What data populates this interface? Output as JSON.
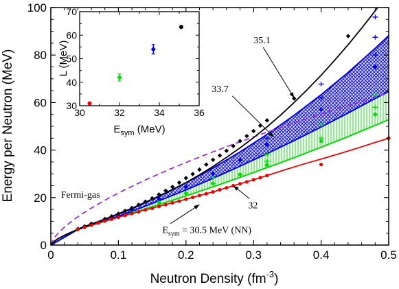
{
  "chart_data": [
    {
      "type": "line",
      "title": "",
      "xlabel": "Neutron Density (fm",
      "xlabel_sup": "-3",
      "xlabel_close": ")",
      "ylabel": "Energy per Neutron (MeV)",
      "xlim": [
        0,
        0.5
      ],
      "ylim": [
        0,
        100
      ],
      "xticks": [
        0,
        0.1,
        0.2,
        0.3,
        0.4,
        0.5
      ],
      "xtick_labels": [
        "0",
        "0.1",
        "0.2",
        "0.3",
        "0.4",
        "0.5"
      ],
      "yticks": [
        0,
        20,
        40,
        60,
        80,
        100
      ],
      "ytick_labels": [
        "0",
        "20",
        "40",
        "60",
        "80",
        "100"
      ],
      "grid": false,
      "legend": "none",
      "colors": {
        "black": "#000000",
        "blue": "#0000ee",
        "green": "#00dd00",
        "red": "#ee0000",
        "fermi": "#9a2fd6"
      },
      "series": [
        {
          "key": "esym35",
          "color": "#000000",
          "x": [
            0.04,
            0.05,
            0.06,
            0.08,
            0.09,
            0.1,
            0.11,
            0.12,
            0.13,
            0.14,
            0.15,
            0.16,
            0.17,
            0.18,
            0.19,
            0.2,
            0.21,
            0.22,
            0.23,
            0.24,
            0.25,
            0.26,
            0.27,
            0.28,
            0.29,
            0.3,
            0.31,
            0.32,
            0.36,
            0.44
          ],
          "y": [
            6.8,
            7.9,
            9.0,
            11.0,
            12.1,
            13.2,
            14.4,
            15.6,
            17.0,
            18.3,
            19.7,
            21.3,
            22.9,
            24.5,
            26.3,
            28.2,
            29.9,
            31.8,
            33.9,
            35.9,
            37.7,
            39.7,
            41.7,
            43.8,
            45.9,
            48.0,
            50.3,
            52.5,
            61.7,
            88.0
          ],
          "curve_x": [
            0.0,
            0.005,
            0.01,
            0.02,
            0.03,
            0.04,
            0.06,
            0.08,
            0.1,
            0.12,
            0.14,
            0.16,
            0.18,
            0.2,
            0.22,
            0.24,
            0.26,
            0.28,
            0.3,
            0.32,
            0.34,
            0.36,
            0.38,
            0.4,
            0.42,
            0.44,
            0.46,
            0.48,
            0.49
          ],
          "curve_y": [
            0.0,
            1.5,
            2.6,
            4.1,
            5.4,
            6.6,
            8.8,
            10.9,
            13.1,
            15.4,
            17.9,
            20.5,
            23.3,
            26.3,
            29.6,
            33.1,
            36.9,
            40.9,
            45.2,
            49.8,
            54.7,
            60.0,
            65.6,
            71.5,
            77.8,
            84.4,
            91.3,
            98.6,
            102.3
          ]
        },
        {
          "key": "esym33",
          "color": "#0000ee",
          "x": [
            0.08,
            0.12,
            0.16,
            0.2,
            0.24,
            0.28,
            0.32,
            0.4,
            0.48
          ],
          "y": [
            10.6,
            14.9,
            19.5,
            24.6,
            30.0,
            35.8,
            42.3,
            57.0,
            75.0
          ],
          "band_x": [
            0.0,
            0.04,
            0.08,
            0.12,
            0.16,
            0.2,
            0.24,
            0.28,
            0.32,
            0.36,
            0.4,
            0.44,
            0.48,
            0.5
          ],
          "band_lo": [
            0.0,
            6.6,
            10.2,
            14.2,
            18.6,
            23.2,
            28.1,
            33.2,
            38.5,
            44.0,
            49.7,
            55.6,
            61.7,
            64.7
          ],
          "band_hi": [
            0.0,
            6.8,
            10.9,
            15.5,
            20.6,
            26.2,
            32.4,
            39.2,
            46.6,
            54.6,
            63.3,
            72.7,
            82.8,
            88.2
          ],
          "extra_points": [
            [
              0.32,
              45.0
            ],
            [
              0.4,
              67.8
            ],
            [
              0.4,
              62.0
            ],
            [
              0.48,
              87.5
            ],
            [
              0.48,
              80.0
            ],
            [
              0.48,
              96.0
            ]
          ]
        },
        {
          "key": "esym32",
          "color": "#00dd00",
          "x": [
            0.04,
            0.12,
            0.16,
            0.2,
            0.24,
            0.28,
            0.32,
            0.4,
            0.48
          ],
          "y": [
            6.6,
            14.4,
            18.0,
            21.8,
            25.9,
            29.7,
            33.7,
            43.8,
            55.0
          ],
          "band_x": [
            0.0,
            0.04,
            0.08,
            0.12,
            0.16,
            0.2,
            0.24,
            0.28,
            0.32,
            0.36,
            0.4,
            0.44,
            0.48,
            0.5
          ],
          "band_lo": [
            0.0,
            6.5,
            10.0,
            13.5,
            17.0,
            20.7,
            24.5,
            28.5,
            32.6,
            36.8,
            41.2,
            45.7,
            50.4,
            52.8
          ],
          "band_hi": [
            0.0,
            6.8,
            10.4,
            14.5,
            18.9,
            23.6,
            28.7,
            34.2,
            40.1,
            46.4,
            53.1,
            60.2,
            67.7,
            71.6
          ],
          "extra_points": [
            [
              0.24,
              28.3
            ],
            [
              0.32,
              35.3
            ],
            [
              0.32,
              38.2
            ],
            [
              0.4,
              45.0
            ],
            [
              0.4,
              50.8
            ],
            [
              0.48,
              58.0
            ],
            [
              0.48,
              63.0
            ]
          ]
        },
        {
          "key": "esym30",
          "color": "#ee0000",
          "x": [
            0.04,
            0.05,
            0.06,
            0.07,
            0.08,
            0.09,
            0.1,
            0.11,
            0.12,
            0.13,
            0.14,
            0.15,
            0.16,
            0.17,
            0.18,
            0.19,
            0.2,
            0.21,
            0.22,
            0.23,
            0.24,
            0.25,
            0.26,
            0.27,
            0.28,
            0.29,
            0.3,
            0.31,
            0.32,
            0.4,
            0.5
          ],
          "y": [
            6.6,
            7.5,
            8.4,
            9.3,
            10.1,
            10.9,
            11.7,
            12.5,
            13.3,
            14.0,
            14.8,
            15.5,
            16.3,
            17.0,
            17.8,
            18.5,
            19.3,
            20.1,
            20.9,
            21.6,
            22.4,
            23.3,
            24.1,
            25.0,
            25.8,
            26.6,
            27.5,
            28.4,
            29.3,
            33.9,
            45.0
          ],
          "curve_x": [
            0.0,
            0.005,
            0.01,
            0.02,
            0.03,
            0.04,
            0.06,
            0.08,
            0.1,
            0.12,
            0.14,
            0.16,
            0.18,
            0.2,
            0.22,
            0.24,
            0.26,
            0.28,
            0.3,
            0.32,
            0.34,
            0.36,
            0.38,
            0.4,
            0.42,
            0.44,
            0.46,
            0.48,
            0.5
          ],
          "curve_y": [
            0.0,
            1.5,
            2.6,
            4.1,
            5.4,
            6.6,
            8.4,
            10.1,
            11.7,
            13.3,
            14.8,
            16.3,
            17.8,
            19.3,
            20.9,
            22.4,
            24.1,
            25.8,
            27.5,
            29.3,
            31.1,
            32.9,
            34.6,
            36.2,
            37.9,
            39.6,
            41.4,
            43.2,
            45.0
          ]
        },
        {
          "key": "fermi",
          "color": "#9a2fd6",
          "dashed": true,
          "function": "fermi-gas",
          "coefficient": 101.6,
          "exponent": 0.6667
        }
      ],
      "annotations": [
        {
          "key": "fermi",
          "text": "Fermi-gas",
          "x": 0.015,
          "y": 20.0
        },
        {
          "key": "a35",
          "text": "35.1",
          "x": 0.3,
          "y": 85.0,
          "arrow_to": [
            0.36,
            62.0
          ]
        },
        {
          "key": "a33",
          "text": "33.7",
          "x": 0.238,
          "y": 64.5,
          "arrow_to": [
            0.33,
            45.5
          ]
        },
        {
          "key": "a32",
          "text": "32",
          "x": 0.292,
          "y": 15.5,
          "arrow_to": [
            0.27,
            25.0
          ]
        },
        {
          "key": "a30",
          "text": "E",
          "sub": "sym",
          "rest": " = 30.5 MeV (NN)",
          "x": 0.165,
          "y": 5.0,
          "arrow_to": [
            0.22,
            17.0
          ]
        }
      ]
    },
    {
      "type": "scatter",
      "title": "",
      "xlabel": "E",
      "xlabel_sub": "sym",
      "xlabel_rest": " (MeV)",
      "ylabel": "L (MeV)",
      "xlim": [
        30,
        36
      ],
      "ylim": [
        30,
        70
      ],
      "xticks": [
        30,
        32,
        34,
        36
      ],
      "xtick_labels": [
        "30",
        "32",
        "34",
        "36"
      ],
      "yticks": [
        30,
        40,
        50,
        60,
        70
      ],
      "ytick_labels": [
        "30",
        "40",
        "50",
        "60",
        "70"
      ],
      "points": [
        {
          "x": 30.5,
          "y": 31.0,
          "err": 0,
          "color": "#ee0000",
          "shape": "circle"
        },
        {
          "x": 32.0,
          "y": 42.0,
          "err": 1.5,
          "color": "#00dd00",
          "shape": "diamond"
        },
        {
          "x": 33.7,
          "y": 54.0,
          "err": 2.0,
          "color": "#0000ee",
          "shape": "diamond"
        },
        {
          "x": 35.1,
          "y": 63.5,
          "err": 0,
          "color": "#000000",
          "shape": "circle"
        }
      ]
    }
  ]
}
